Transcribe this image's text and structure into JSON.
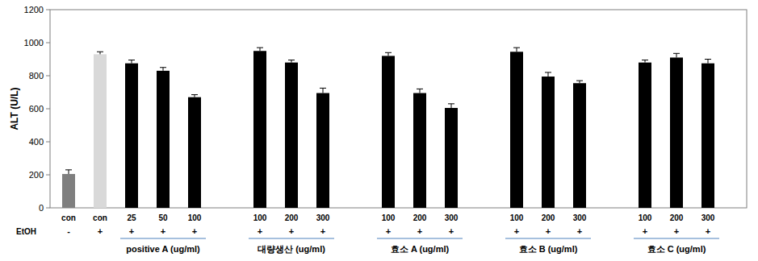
{
  "chart_data": {
    "type": "bar",
    "y_label": "ALT (U/L)",
    "categories": [
      "con",
      "con",
      "25",
      "50",
      "100",
      "100",
      "200",
      "300",
      "100",
      "200",
      "300",
      "100",
      "200",
      "300",
      "100",
      "200",
      "300"
    ],
    "values": [
      205,
      930,
      875,
      830,
      670,
      950,
      880,
      695,
      920,
      695,
      605,
      945,
      795,
      755,
      880,
      910,
      875
    ],
    "errors": [
      25,
      15,
      20,
      20,
      15,
      20,
      15,
      30,
      20,
      25,
      25,
      25,
      25,
      15,
      15,
      25,
      25
    ],
    "colors": [
      "#7f7f7f",
      "#d9d9d9",
      "#000000",
      "#000000",
      "#000000",
      "#000000",
      "#000000",
      "#000000",
      "#000000",
      "#000000",
      "#000000",
      "#000000",
      "#000000",
      "#000000",
      "#000000",
      "#000000",
      "#000000"
    ],
    "row_label": "EtOH",
    "row_values": [
      "-",
      "+",
      "+",
      "+",
      "+",
      "+",
      "+",
      "+",
      "+",
      "+",
      "+",
      "+",
      "+",
      "+",
      "+",
      "+",
      "+"
    ],
    "groups": [
      {
        "label": "positive A (ug/ml)",
        "start": 2,
        "count": 3
      },
      {
        "label": "대량생산 (ug/ml)",
        "start": 5,
        "count": 3
      },
      {
        "label": "효소 A (ug/ml)",
        "start": 8,
        "count": 3
      },
      {
        "label": "효소 B (ug/ml)",
        "start": 11,
        "count": 3
      },
      {
        "label": "효소 C (ug/ml)",
        "start": 14,
        "count": 3
      }
    ],
    "ylim": [
      0,
      1200
    ],
    "yticks": [
      0,
      200,
      400,
      600,
      800,
      1000,
      1200
    ],
    "grid": false
  }
}
